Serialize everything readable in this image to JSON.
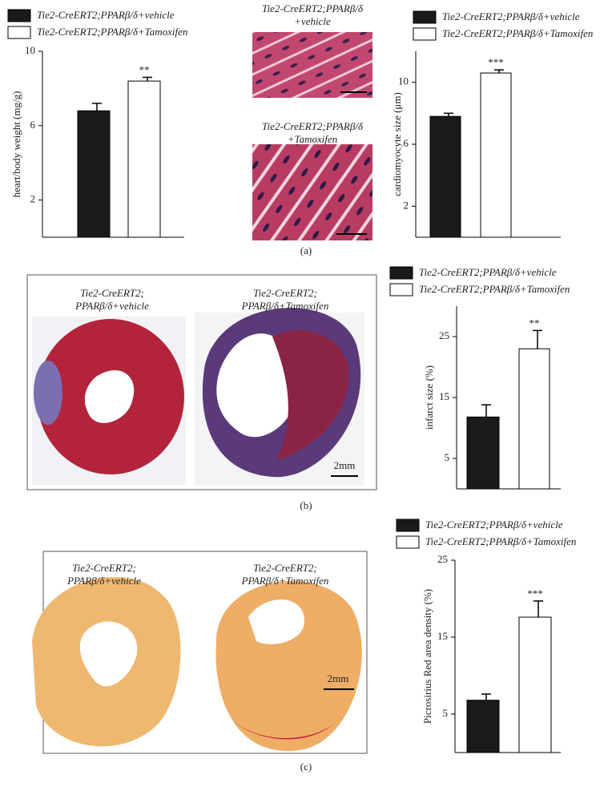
{
  "figure": {
    "panels": [
      "(a)",
      "(b)",
      "(c)"
    ],
    "image_labels": {
      "a_vehicle": [
        "Tie2-CreERT2;PPARβ/δ",
        "+vehicle"
      ],
      "a_tamoxifen": [
        "Tie2-CreERT2;PPARβ/δ",
        "+Tamoxifen"
      ],
      "b_vehicle": [
        "Tie2-CreERT2;",
        "PPARβ/δ+vehicle"
      ],
      "b_tamoxifen": [
        "Tie2-CreERT2;",
        "PPARβ/δ+Tamoxifen"
      ],
      "c_vehicle": [
        "Tie2-CreERT2;",
        "PPARβ/δ+vehicle"
      ],
      "c_tamoxifen": [
        "Tie2-CreERT2;",
        "PPARβ/δ+Tamoxifen"
      ]
    },
    "scale_bars": [
      "2mm",
      "2mm"
    ]
  },
  "chart_data": [
    {
      "type": "bar",
      "y_label": "heart/body weight (mg/g)",
      "ylim": [
        0,
        10
      ],
      "yticks": [
        2,
        6,
        10
      ],
      "series": [
        {
          "name": "Tie2-CreERT2;PPARβ/δ+vehicle",
          "color": "#1a1a1a",
          "values": [
            6.8
          ],
          "errors": [
            0.4
          ]
        },
        {
          "name": "Tie2-CreERT2;PPARβ/δ+Tamoxifen",
          "color": "#ffffff",
          "values": [
            8.4
          ],
          "errors": [
            0.2
          ],
          "significance": "**"
        }
      ]
    },
    {
      "type": "bar",
      "y_label": "cardiomyocyte size (μm)",
      "ylim": [
        0,
        12
      ],
      "yticks": [
        2,
        6,
        10
      ],
      "series": [
        {
          "name": "Tie2-CreERT2;PPARβ/δ+vehicle",
          "color": "#1a1a1a",
          "values": [
            7.8
          ],
          "errors": [
            0.2
          ]
        },
        {
          "name": "Tie2-CreERT2;PPARβ/δ+Tamoxifen",
          "color": "#ffffff",
          "values": [
            10.6
          ],
          "errors": [
            0.2
          ],
          "significance": "***"
        }
      ]
    },
    {
      "type": "bar",
      "y_label": "infarct size (%)",
      "ylim": [
        0,
        30
      ],
      "yticks": [
        5,
        15,
        25
      ],
      "series": [
        {
          "name": "Tie2-CreERT2;PPARβ/δ+vehicle",
          "color": "#1a1a1a",
          "values": [
            11.8
          ],
          "errors": [
            2
          ]
        },
        {
          "name": "Tie2-CreERT2;PPARβ/δ+Tamoxifen",
          "color": "#ffffff",
          "values": [
            23
          ],
          "errors": [
            3
          ],
          "significance": "**"
        }
      ]
    },
    {
      "type": "bar",
      "y_label": "Picrosirius Red area density (%)",
      "ylim": [
        0,
        25
      ],
      "yticks": [
        5,
        15,
        25
      ],
      "series": [
        {
          "name": "Tie2-CreERT2;PPARβ/δ+vehicle",
          "color": "#1a1a1a",
          "values": [
            6.8
          ],
          "errors": [
            0.8
          ]
        },
        {
          "name": "Tie2-CreERT2;PPARβ/δ+Tamoxifen",
          "color": "#ffffff",
          "values": [
            17.6
          ],
          "errors": [
            2.1
          ],
          "significance": "***"
        }
      ]
    }
  ]
}
